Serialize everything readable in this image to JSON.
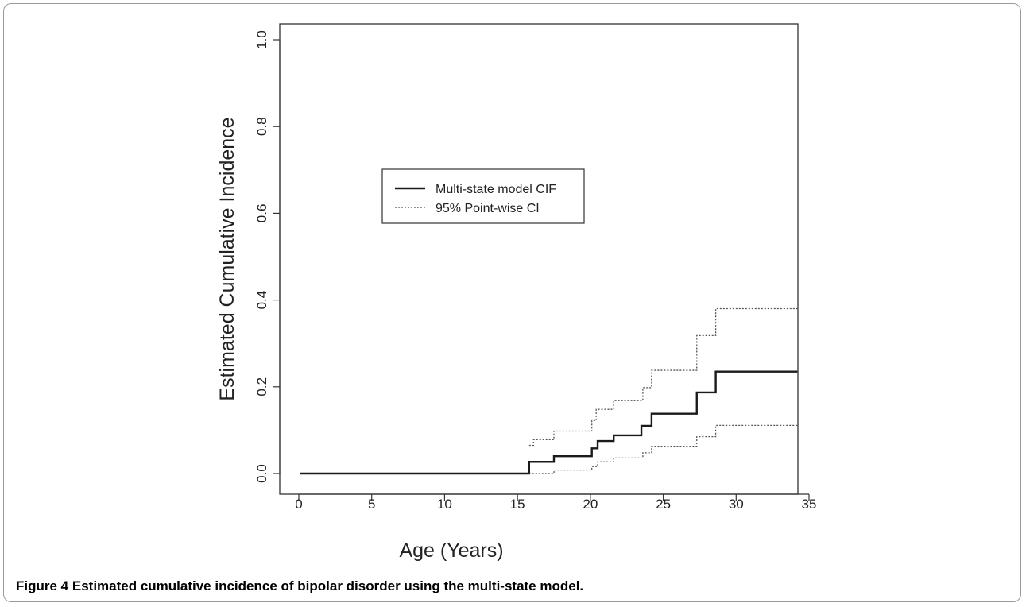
{
  "caption": {
    "label": "Figure 4",
    "text": "Estimated cumulative incidence of bipolar disorder using the multi-state model."
  },
  "chart_data": {
    "type": "line",
    "title": "",
    "xlabel": "Age (Years)",
    "ylabel": "Estimated Cumulative Incidence",
    "xlim": [
      0,
      35
    ],
    "ylim": [
      0,
      1
    ],
    "x_ticks": [
      0,
      5,
      10,
      15,
      20,
      25,
      30,
      35
    ],
    "x_tick_labels": [
      "0",
      "5",
      "10",
      "15",
      "20",
      "25",
      "30",
      "35"
    ],
    "y_ticks": [
      0,
      0.2,
      0.4,
      0.6,
      0.8,
      1.0
    ],
    "y_tick_labels": [
      "0.0",
      "0.2",
      "0.4",
      "0.6",
      "0.8",
      "1.0"
    ],
    "grid": false,
    "legend_position": "upper-left-center",
    "series": [
      {
        "name": "Multi-state model CIF",
        "style": "solid",
        "color": "#1a1a1a",
        "step": true,
        "x": [
          0.1,
          15.8,
          17.5,
          20.1,
          20.5,
          21.6,
          23.5,
          24.2,
          27.3,
          28.6,
          34.2
        ],
        "y": [
          0.0,
          0.027,
          0.04,
          0.058,
          0.075,
          0.088,
          0.11,
          0.138,
          0.187,
          0.235,
          0.235
        ]
      },
      {
        "name": "95% Point-wise CI",
        "style": "dotted",
        "color": "#555555",
        "step": true,
        "x": [
          15.8,
          16.1,
          17.5,
          20.1,
          20.4,
          21.6,
          23.6,
          24.2,
          27.3,
          28.6,
          34.2
        ],
        "y": [
          0.065,
          0.078,
          0.098,
          0.122,
          0.148,
          0.168,
          0.198,
          0.238,
          0.318,
          0.38,
          0.38
        ]
      },
      {
        "name": "",
        "style": "dotted",
        "color": "#555555",
        "step": true,
        "x": [
          15.8,
          17.5,
          20.1,
          20.5,
          21.6,
          23.6,
          24.2,
          27.3,
          28.6,
          34.2
        ],
        "y": [
          0.0,
          0.008,
          0.016,
          0.027,
          0.036,
          0.048,
          0.063,
          0.085,
          0.111,
          0.111
        ]
      }
    ]
  }
}
